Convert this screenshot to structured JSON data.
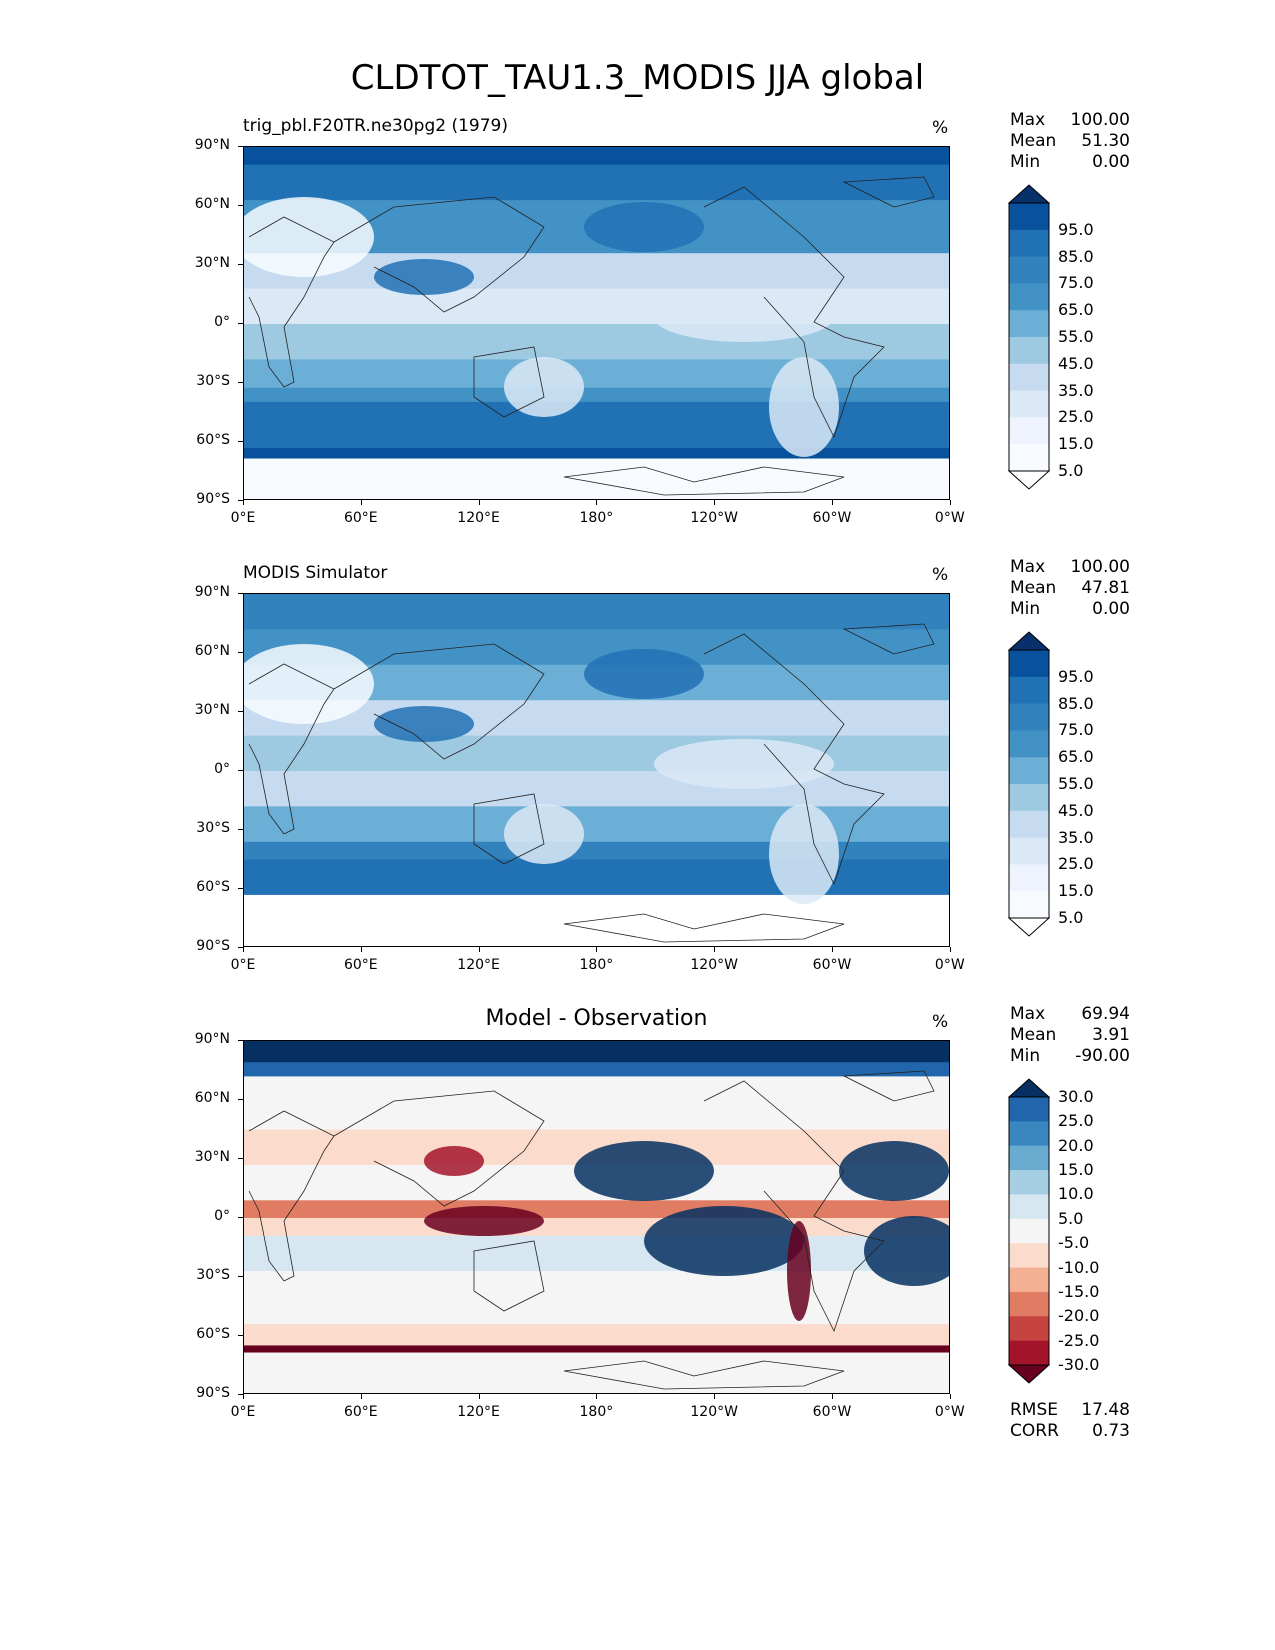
{
  "figure_title": "CLDTOT_TAU1.3_MODIS JJA global",
  "axes": {
    "y_ticks": [
      "90°N",
      "60°N",
      "30°N",
      "0°",
      "30°S",
      "60°S",
      "90°S"
    ],
    "x_ticks": [
      "0°E",
      "60°E",
      "120°E",
      "180°",
      "120°W",
      "60°W",
      "0°W"
    ]
  },
  "panels": [
    {
      "title": "trig_pbl.F20TR.ne30pg2 (1979)",
      "unit": "%",
      "stats": {
        "max_label": "Max",
        "max": "100.00",
        "mean_label": "Mean",
        "mean": "51.30",
        "min_label": "Min",
        "min": "0.00"
      },
      "colorbar": {
        "ticks": [
          "95.0",
          "85.0",
          "75.0",
          "65.0",
          "55.0",
          "45.0",
          "35.0",
          "25.0",
          "15.0",
          "5.0"
        ],
        "colors": [
          "#08306b",
          "#08519c",
          "#2171b5",
          "#3182bd",
          "#4292c6",
          "#6baed6",
          "#9ecae1",
          "#c6dbef",
          "#dbe9f6",
          "#eff3ff",
          "#f7fbff",
          "#ffffff"
        ]
      }
    },
    {
      "title": "MODIS Simulator",
      "unit": "%",
      "stats": {
        "max_label": "Max",
        "max": "100.00",
        "mean_label": "Mean",
        "mean": "47.81",
        "min_label": "Min",
        "min": "0.00"
      },
      "colorbar": {
        "ticks": [
          "95.0",
          "85.0",
          "75.0",
          "65.0",
          "55.0",
          "45.0",
          "35.0",
          "25.0",
          "15.0",
          "5.0"
        ],
        "colors": [
          "#08306b",
          "#08519c",
          "#2171b5",
          "#3182bd",
          "#4292c6",
          "#6baed6",
          "#9ecae1",
          "#c6dbef",
          "#dbe9f6",
          "#eff3ff",
          "#f7fbff",
          "#ffffff"
        ]
      }
    },
    {
      "title": "Model - Observation",
      "unit": "%",
      "stats": {
        "max_label": "Max",
        "max": "69.94",
        "mean_label": "Mean",
        "mean": "3.91",
        "min_label": "Min",
        "min": "-90.00"
      },
      "colorbar": {
        "ticks": [
          "30.0",
          "25.0",
          "20.0",
          "15.0",
          "10.0",
          "5.0",
          "-5.0",
          "-10.0",
          "-15.0",
          "-20.0",
          "-25.0",
          "-30.0"
        ],
        "colors": [
          "#053061",
          "#2166ac",
          "#3a87c0",
          "#6aacd0",
          "#a7cfe4",
          "#d6e7f1",
          "#f5f5f5",
          "#fbdccc",
          "#f4b093",
          "#e07c63",
          "#c6443f",
          "#a3142a",
          "#67001f"
        ]
      },
      "footer": {
        "rmse_label": "RMSE",
        "rmse": "17.48",
        "corr_label": "CORR",
        "corr": "0.73"
      }
    }
  ]
}
